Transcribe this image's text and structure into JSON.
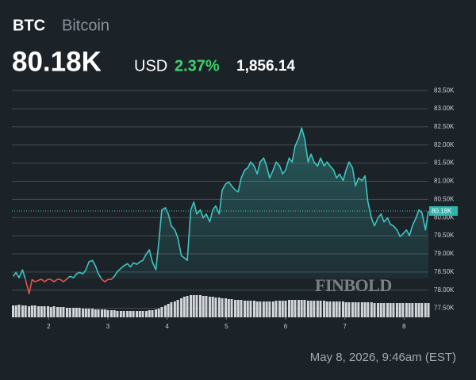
{
  "chart_data": {
    "type": "line",
    "symbol": "BTC",
    "name": "Bitcoin",
    "price": {
      "value": 80180,
      "label": "80.18K"
    },
    "currency": "USD",
    "change_percent": {
      "value": 2.37,
      "label": "2.37%"
    },
    "change": {
      "value": 1856.14,
      "label": "1,856.14"
    },
    "watermark": "FINBOLD",
    "timestamp": "May 8, 2026, 9:46am (EST)",
    "x": [
      1.4,
      1.45,
      1.5,
      1.56,
      1.61,
      1.67,
      1.72,
      1.77,
      1.83,
      1.88,
      1.93,
      1.99,
      2.04,
      2.09,
      2.15,
      2.2,
      2.25,
      2.31,
      2.36,
      2.42,
      2.47,
      2.52,
      2.58,
      2.63,
      2.68,
      2.74,
      2.79,
      2.84,
      2.9,
      2.95,
      3.0,
      3.06,
      3.11,
      3.16,
      3.22,
      3.27,
      3.33,
      3.38,
      3.43,
      3.49,
      3.54,
      3.59,
      3.65,
      3.7,
      3.75,
      3.81,
      3.86,
      3.91,
      3.97,
      4.02,
      4.07,
      4.13,
      4.18,
      4.24,
      4.29,
      4.34,
      4.4,
      4.45,
      4.5,
      4.56,
      4.61,
      4.66,
      4.72,
      4.77,
      4.82,
      4.88,
      4.93,
      4.99,
      5.04,
      5.09,
      5.15,
      5.2,
      5.25,
      5.31,
      5.36,
      5.41,
      5.47,
      5.52,
      5.57,
      5.63,
      5.68,
      5.73,
      5.79,
      5.84,
      5.9,
      5.95,
      6.0,
      6.06,
      6.11,
      6.16,
      6.22,
      6.27,
      6.32,
      6.38,
      6.43,
      6.48,
      6.54,
      6.59,
      6.65,
      6.7,
      6.75,
      6.81,
      6.86,
      6.91,
      6.97,
      7.02,
      7.07,
      7.13,
      7.18,
      7.23,
      7.29,
      7.34,
      7.39,
      7.45,
      7.5,
      7.56,
      7.61,
      7.66,
      7.72,
      7.77,
      7.82,
      7.88,
      7.93,
      7.98,
      8.04,
      8.09,
      8.14,
      8.2,
      8.25,
      8.3,
      8.36,
      8.41
    ],
    "series": [
      {
        "color": "#3fc4c0",
        "negative_color": "#e5534b",
        "values": [
          78380,
          78490,
          78340,
          78560,
          78290,
          77900,
          78290,
          78230,
          78270,
          78300,
          78230,
          78300,
          78290,
          78230,
          78300,
          78290,
          78230,
          78310,
          78380,
          78340,
          78450,
          78490,
          78450,
          78560,
          78780,
          78820,
          78670,
          78450,
          78290,
          78230,
          78290,
          78300,
          78380,
          78510,
          78600,
          78670,
          78730,
          78640,
          78750,
          78710,
          78780,
          78820,
          79000,
          79110,
          78780,
          78560,
          79330,
          80210,
          80270,
          80100,
          79770,
          79660,
          79440,
          78950,
          78890,
          78820,
          80210,
          80430,
          80100,
          80210,
          79990,
          80100,
          79880,
          80210,
          80320,
          80100,
          80760,
          80930,
          80980,
          80870,
          80760,
          80710,
          81090,
          81310,
          81370,
          81530,
          81420,
          81200,
          81530,
          81640,
          81420,
          81090,
          81310,
          81530,
          81420,
          81200,
          81310,
          81640,
          81530,
          81970,
          82190,
          82470,
          82190,
          81530,
          81750,
          81530,
          81420,
          81640,
          81420,
          81530,
          81420,
          81310,
          81090,
          81200,
          81020,
          81310,
          81530,
          81370,
          80870,
          81090,
          81020,
          81150,
          80430,
          79990,
          79770,
          79990,
          80100,
          79880,
          79990,
          79810,
          79770,
          79660,
          79480,
          79550,
          79660,
          79500,
          79770,
          79990,
          80210,
          80140,
          79660,
          80180
        ]
      }
    ],
    "volume_color": "#d3d7db",
    "volume": [
      15,
      15,
      16,
      15,
      15,
      14,
      15,
      15,
      14,
      14,
      14,
      14,
      13,
      14,
      13,
      13,
      13,
      12,
      12,
      12,
      12,
      12,
      11,
      11,
      11,
      11,
      10,
      10,
      10,
      10,
      9,
      9,
      9,
      8,
      8,
      8,
      8,
      8,
      8,
      8,
      8,
      8,
      8,
      9,
      9,
      10,
      11,
      13,
      15,
      17,
      19,
      20,
      22,
      24,
      26,
      27,
      28,
      28,
      28,
      28,
      27,
      27,
      26,
      26,
      25,
      25,
      24,
      24,
      23,
      23,
      22,
      22,
      22,
      21,
      21,
      21,
      21,
      20,
      20,
      20,
      20,
      20,
      20,
      21,
      21,
      21,
      21,
      22,
      22,
      22,
      22,
      22,
      22,
      21,
      21,
      21,
      21,
      21,
      21,
      20,
      20,
      20,
      20,
      20,
      20,
      19,
      19,
      19,
      19,
      19,
      19,
      19,
      19,
      19,
      18,
      18,
      18,
      18,
      18,
      18,
      18,
      18,
      18,
      18,
      18,
      18,
      18,
      18,
      18,
      18,
      18,
      18
    ],
    "xlim": [
      1.38,
      8.41
    ],
    "xticks": [
      2,
      3,
      4,
      5,
      6,
      7,
      8
    ],
    "ylim": [
      77250,
      83700
    ],
    "yticks": [
      {
        "value": 77500,
        "label": "77.50K"
      },
      {
        "value": 78000,
        "label": "78.00K"
      },
      {
        "value": 78500,
        "label": "78.50K"
      },
      {
        "value": 79000,
        "label": "79.00K"
      },
      {
        "value": 79500,
        "label": "79.50K"
      },
      {
        "value": 80000,
        "label": "80.00K"
      },
      {
        "value": 80500,
        "label": "80.50K"
      },
      {
        "value": 81000,
        "label": "81.00K"
      },
      {
        "value": 81500,
        "label": "81.50K"
      },
      {
        "value": 82000,
        "label": "82.00K"
      },
      {
        "value": 82500,
        "label": "82.50K"
      },
      {
        "value": 83000,
        "label": "83.00K"
      },
      {
        "value": 83500,
        "label": "83.50K"
      }
    ],
    "grid": true
  }
}
